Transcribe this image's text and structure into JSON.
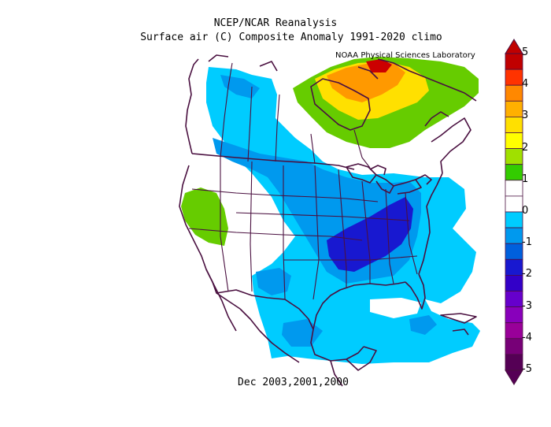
{
  "title_line1": "NCEP/NCAR Reanalysis",
  "title_line2": "Surface air (C) Composite Anomaly 1991-2020 climo",
  "credit": "NOAA Physical Sciences Laboratory",
  "footer": "Dec 2003,2001,2000",
  "colorbar": {
    "ticks": [
      "5",
      "4",
      "3",
      "2",
      "1",
      "0",
      "-1",
      "-2",
      "-3",
      "-4",
      "-5"
    ],
    "colors": [
      "#c00000",
      "#ff3300",
      "#ff8800",
      "#ffb000",
      "#ffe000",
      "#ffff00",
      "#a0e000",
      "#33cc00",
      "#ffffff",
      "#ffffff",
      "#00ccff",
      "#0099ee",
      "#0060dd",
      "#1818d0",
      "#3300c8",
      "#6600cc",
      "#8800bb",
      "#990099",
      "#770077",
      "#550055"
    ]
  },
  "colors": {
    "strong_warm": "#cc0000",
    "warm_orange": "#ff9900",
    "warm_yellow": "#ffdd00",
    "mild_warm": "#66cc00",
    "mild_cold": "#00ccff",
    "cold": "#0099ee",
    "very_cold": "#1818d0",
    "boundaries": "#4a1040"
  }
}
